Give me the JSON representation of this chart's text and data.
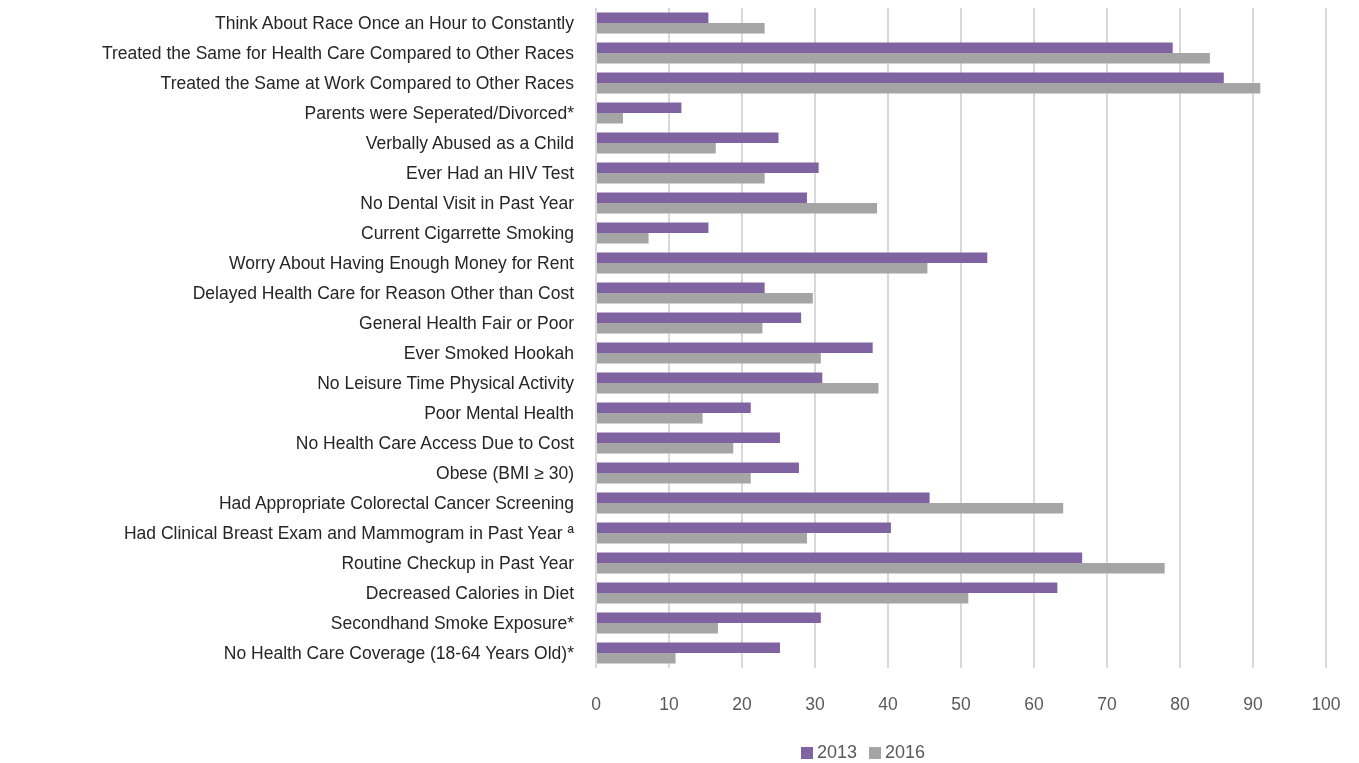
{
  "chart_data": {
    "type": "bar",
    "orientation": "horizontal",
    "categories": [
      "Think About Race Once an Hour to Constantly",
      "Treated the Same for Health Care Compared to Other Races",
      "Treated the Same at Work Compared to Other Races",
      "Parents were Seperated/Divorced*",
      "Verbally Abused as a Child",
      "Ever Had an HIV Test",
      "No Dental Visit in Past Year",
      "Current Cigarrette Smoking",
      "Worry About Having Enough Money for Rent",
      "Delayed Health Care for Reason Other than Cost",
      "General Health Fair or Poor",
      "Ever Smoked Hookah",
      "No Leisure Time Physical Activity",
      "Poor Mental Health",
      "No Health Care Access Due to Cost",
      "Obese (BMI ≥ 30)",
      "Had Appropriate Colorectal Cancer Screening",
      "Had Clinical Breast Exam and Mammogram in Past Year ª",
      "Routine Checkup in Past Year",
      "Decreased Calories in Diet",
      "Secondhand Smoke Exposure*",
      "No Health Care Coverage (18-64 Years Old)*"
    ],
    "series": [
      {
        "name": "2013",
        "color": "#8064a2",
        "values": [
          15.4,
          79,
          86,
          11.7,
          25,
          30.5,
          28.9,
          15.4,
          53.6,
          23.1,
          28.1,
          37.9,
          31,
          21.2,
          25.2,
          27.8,
          45.7,
          40.4,
          66.6,
          63.2,
          30.8,
          25.2
        ]
      },
      {
        "name": "2016",
        "color": "#a5a5a5",
        "values": [
          23.1,
          84.1,
          91,
          3.7,
          16.4,
          23.1,
          38.5,
          7.2,
          45.4,
          29.7,
          22.8,
          30.8,
          38.7,
          14.6,
          18.8,
          21.2,
          64,
          28.9,
          77.9,
          51,
          16.7,
          10.9
        ]
      }
    ],
    "xlim": [
      0,
      100
    ],
    "xticks": [
      0,
      10,
      20,
      30,
      40,
      50,
      60,
      70,
      80,
      90,
      100
    ],
    "grid": "x",
    "legend": "bottom"
  }
}
